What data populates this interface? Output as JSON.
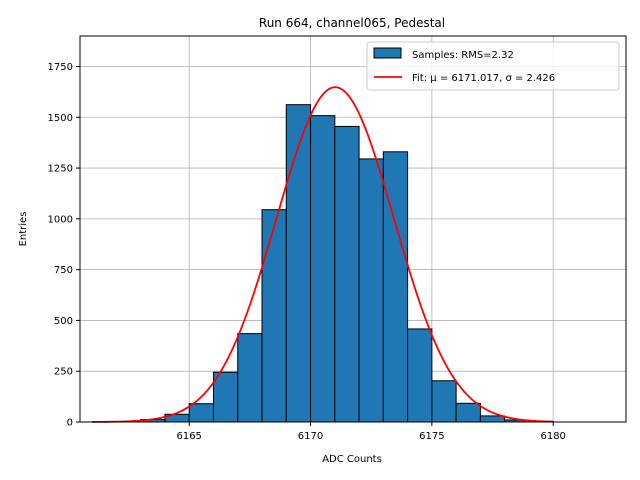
{
  "chart_data": {
    "type": "bar",
    "title": "Run 664, channel065, Pedestal",
    "xlabel": "ADC Counts",
    "ylabel": "Entries",
    "xlim": [
      6160.5,
      6183
    ],
    "ylim": [
      0,
      1900
    ],
    "grid": true,
    "x_ticks": [
      6165,
      6170,
      6175,
      6180
    ],
    "y_ticks": [
      0,
      250,
      500,
      750,
      1000,
      1250,
      1500,
      1750
    ],
    "bin_width": 1,
    "bins": [
      {
        "left": 6163,
        "value": 12
      },
      {
        "left": 6164,
        "value": 38
      },
      {
        "left": 6165,
        "value": 90
      },
      {
        "left": 6166,
        "value": 245
      },
      {
        "left": 6167,
        "value": 435
      },
      {
        "left": 6168,
        "value": 1045
      },
      {
        "left": 6169,
        "value": 1562
      },
      {
        "left": 6170,
        "value": 1508
      },
      {
        "left": 6171,
        "value": 1455
      },
      {
        "left": 6172,
        "value": 1295
      },
      {
        "left": 6173,
        "value": 1330
      },
      {
        "left": 6174,
        "value": 458
      },
      {
        "left": 6175,
        "value": 203
      },
      {
        "left": 6176,
        "value": 92
      },
      {
        "left": 6177,
        "value": 30
      },
      {
        "left": 6178,
        "value": 10
      },
      {
        "left": 6179,
        "value": 3
      }
    ],
    "fit": {
      "mu": 6171.017,
      "sigma": 2.426,
      "amplitude": 1648,
      "x_range": [
        6161,
        6180
      ]
    },
    "legend": {
      "position": "top-right",
      "samples_label": "Samples: RMS=2.32",
      "fit_label": "Fit: μ = 6171.017, σ = 2.426"
    },
    "colors": {
      "bar": "#1f77b4",
      "bar_edge": "#000000",
      "fit": "#ff0000",
      "grid": "#b0b0b0"
    }
  }
}
